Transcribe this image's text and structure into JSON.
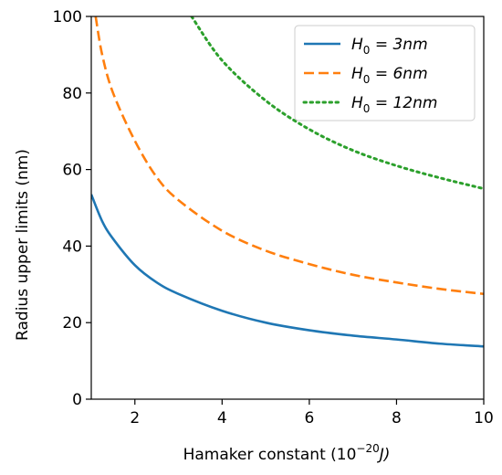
{
  "chart_data": {
    "type": "line",
    "xlabel": "Hamaker constant (10",
    "xlabel_exponent": "−20",
    "xlabel_unit": "J)",
    "ylabel": "Radius upper limits (nm)",
    "xlim": [
      1,
      10
    ],
    "ylim": [
      0,
      100
    ],
    "x_ticks": [
      2,
      4,
      6,
      8,
      10
    ],
    "x_tick_labels": [
      "2",
      "4",
      "6",
      "8",
      "10"
    ],
    "y_ticks": [
      0,
      20,
      40,
      60,
      80,
      100
    ],
    "y_tick_labels": [
      "0",
      "20",
      "40",
      "60",
      "80",
      "100"
    ],
    "grid": false,
    "legend_position": "top-right",
    "series": [
      {
        "name": "H0 = 3nm",
        "legend_base": "H",
        "legend_sub": "0",
        "legend_rest": " = 3nm",
        "color": "#1f77b4",
        "style": "solid",
        "x": [
          1,
          1.25,
          1.5,
          2,
          2.5,
          3,
          4,
          5,
          6,
          7,
          8,
          9,
          10
        ],
        "y": [
          53.5,
          46.5,
          41.9,
          35.0,
          30.5,
          27.5,
          23.1,
          20.0,
          18.0,
          16.6,
          15.6,
          14.5,
          13.8
        ]
      },
      {
        "name": "H0 = 6nm",
        "legend_base": "H",
        "legend_sub": "0",
        "legend_rest": " = 6nm",
        "color": "#ff7f0e",
        "style": "dashed",
        "x": [
          1.1,
          1.25,
          1.5,
          2,
          2.5,
          3,
          4,
          5,
          6,
          7,
          8,
          9,
          10
        ],
        "y": [
          100,
          90.0,
          80.0,
          67.5,
          58.0,
          52.0,
          44.0,
          38.8,
          35.3,
          32.5,
          30.5,
          28.8,
          27.5
        ]
      },
      {
        "name": "H0 = 12nm",
        "legend_base": "H",
        "legend_sub": "0",
        "legend_rest": " = 12nm",
        "color": "#2ca02c",
        "style": "dotted",
        "x": [
          3.3,
          4,
          5,
          6,
          7,
          8,
          9,
          10
        ],
        "y": [
          100,
          88.5,
          78.0,
          70.5,
          65.0,
          61.0,
          57.8,
          55.0
        ]
      }
    ]
  }
}
